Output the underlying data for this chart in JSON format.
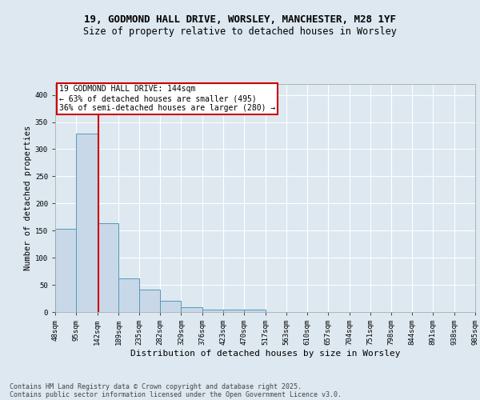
{
  "title_line1": "19, GODMOND HALL DRIVE, WORSLEY, MANCHESTER, M28 1YF",
  "title_line2": "Size of property relative to detached houses in Worsley",
  "xlabel": "Distribution of detached houses by size in Worsley",
  "ylabel": "Number of detached properties",
  "bin_edges": [
    48,
    95,
    142,
    189,
    235,
    282,
    329,
    376,
    423,
    470,
    517,
    563,
    610,
    657,
    704,
    751,
    798,
    844,
    891,
    938,
    985
  ],
  "bar_heights": [
    153,
    328,
    163,
    62,
    42,
    20,
    9,
    5,
    5,
    5,
    0,
    0,
    0,
    0,
    0,
    0,
    0,
    0,
    0,
    0
  ],
  "bar_color": "#c8d8e8",
  "bar_edge_color": "#5599bb",
  "red_line_x": 144,
  "annotation_title": "19 GODMOND HALL DRIVE: 144sqm",
  "annotation_line2": "← 63% of detached houses are smaller (495)",
  "annotation_line3": "36% of semi-detached houses are larger (280) →",
  "annotation_box_color": "#ffffff",
  "annotation_box_edge": "#cc0000",
  "red_line_color": "#cc0000",
  "background_color": "#dde8f0",
  "plot_bg_color": "#dde8f0",
  "footer_line1": "Contains HM Land Registry data © Crown copyright and database right 2025.",
  "footer_line2": "Contains public sector information licensed under the Open Government Licence v3.0.",
  "ylim": [
    0,
    420
  ],
  "yticks": [
    0,
    50,
    100,
    150,
    200,
    250,
    300,
    350,
    400
  ],
  "title_fontsize": 9,
  "subtitle_fontsize": 8.5,
  "tick_fontsize": 6.5,
  "ylabel_fontsize": 7.5,
  "xlabel_fontsize": 8,
  "footer_fontsize": 6,
  "annotation_fontsize": 7
}
